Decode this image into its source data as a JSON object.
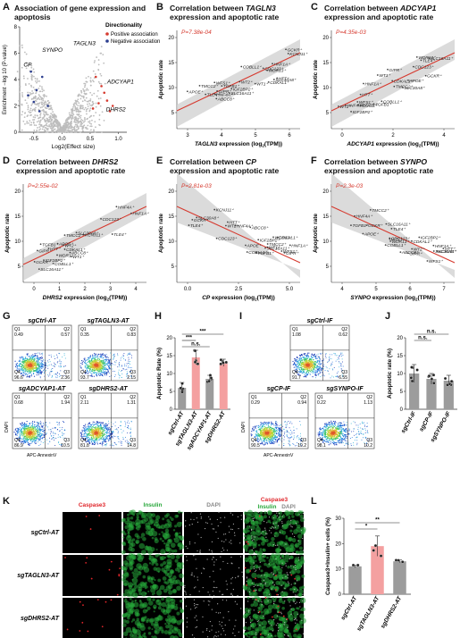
{
  "panelA": {
    "letter": "A",
    "title": "Association of gene expression and apoptosis",
    "ylabel": "Enrichment −log",
    "ylabel_sub": "10",
    "ylabel_tail": "(P-value)",
    "xlabel": "Log",
    "xlabel_sub": "2",
    "xlabel_tail": "(Effect size)",
    "xticks": [
      "-0.5",
      "0.0",
      "0.5",
      "1.0"
    ],
    "yticks": [
      "0",
      "2",
      "4",
      "6",
      "8"
    ],
    "legend_title": "Directionality",
    "legend_pos": "Positive association",
    "legend_neg": "Negative association",
    "gene_labels": [
      "TAGLN3",
      "CP",
      "SYNPO",
      "ADCYAP1",
      "DHRS2"
    ],
    "color_pos": "#d63a2f",
    "color_neg": "#2c3e8f"
  },
  "corr_panels": [
    {
      "letter": "B",
      "title1": "Correlation between ",
      "gene": "TAGLN3",
      "title2": "expression and apoptotic rate",
      "pval": "P=7.38e-04",
      "xlabel_gene": "TAGLN3",
      "xlabel_tail": " expression (log",
      "xlabel_sub": "2",
      "xlabel_end": "(TPM))",
      "ylabel": "Apoptotic rate",
      "xticks": [
        "3",
        "4",
        "5",
        "6"
      ],
      "yticks": [
        "20",
        "15",
        "10",
        "5"
      ],
      "labels": [
        "IGF2BP2",
        "TLE4",
        "TMCC2",
        "WDR13",
        "HTT",
        "WFS1",
        "SLC16A11",
        "HNF4A",
        "ABCC8",
        "CDC123",
        "HNF1A",
        "COBLL1",
        "APOE",
        "CDKAL1",
        "GIPR",
        "WT1",
        "WT2",
        "KCNJ11",
        "GCKR",
        "TGFB1",
        "SLC30A8"
      ]
    },
    {
      "letter": "C",
      "title1": "Correlation between ",
      "gene": "ADCYAP1",
      "title2": "expression and apoptotic rate",
      "pval": "P=4.35e-03",
      "xlabel_gene": "ADCYAP1",
      "xlabel_tail": " expression (log",
      "xlabel_sub": "2",
      "xlabel_end": "(TPM))",
      "ylabel": "Apoptotic rate",
      "xticks": [
        "0",
        "2",
        "4"
      ],
      "yticks": [
        "20",
        "15",
        "10",
        "5"
      ],
      "labels": [
        "IGF2BP2",
        "WDR13",
        "HNF1A",
        "TLE4",
        "TMCC2",
        "HTT",
        "WFS1",
        "ABCC8",
        "SLC16A11",
        "CDC123",
        "HNF4A",
        "GIPR",
        "APOE",
        "CDKAL1",
        "COBLL1",
        "WT1",
        "GCKR",
        "WT2",
        "KCNJ11",
        "TGFB1",
        "SLC30A8"
      ]
    },
    {
      "letter": "D",
      "title1": "Correlation between ",
      "gene": "DHRS2",
      "title2": "expression and apoptotic rate",
      "pval": "P=2.55e-02",
      "xlabel_gene": "DHRS2",
      "xlabel_tail": " expression (log",
      "xlabel_sub": "2",
      "xlabel_end": "(TPM))",
      "ylabel": "Apoptotic rate",
      "xticks": [
        "0",
        "1",
        "2",
        "3",
        "4"
      ],
      "yticks": [
        "20",
        "15",
        "10",
        "5"
      ],
      "labels": [
        "HNF4A",
        "WDR13",
        "TMCC2",
        "TLE4",
        "HTT",
        "IGF2BP2",
        "HNF1A",
        "SLC16A11",
        "ABCC8",
        "CDC123",
        "CDKAL1",
        "WT1",
        "APOE",
        "COBLL1",
        "KCNJ11",
        "GIPR",
        "TGFB1",
        "GCKR",
        "SLC30A8",
        "WT2"
      ]
    },
    {
      "letter": "E",
      "title1": "Correlation between ",
      "gene": "CP",
      "title2": "expression and apoptotic rate",
      "pval": "P=2.81e-03",
      "xlabel_gene": "CP",
      "xlabel_tail": " expression (log",
      "xlabel_sub": "2",
      "xlabel_end": "(TPM))",
      "ylabel": "Apoptotic rate",
      "xticks": [
        "0.0",
        "2.5",
        "5.0"
      ],
      "yticks": [
        "20",
        "15",
        "10",
        "5"
      ],
      "labels": [
        "HNF4A",
        "TMCC2",
        "HTT",
        "SLC16A11",
        "WDR13",
        "TLE4",
        "IGF2BP2",
        "HNF1A",
        "WFS1",
        "ABCC8",
        "APOE",
        "CDC123",
        "CDKAL1",
        "GIPR",
        "COBLL1",
        "WT1",
        "WT2",
        "GCKR",
        "TGFB1",
        "KCNJ11",
        "SLC30A8"
      ]
    },
    {
      "letter": "F",
      "title1": "Correlation between ",
      "gene": "SYNPO",
      "title2": "expression and apoptotic rate",
      "pval": "P=2.3e-03",
      "xlabel_gene": "SYNPO",
      "xlabel_tail": " expression (log",
      "xlabel_sub": "2",
      "xlabel_end": "(TPM))",
      "ylabel": "Apoptotic rate",
      "xticks": [
        "4",
        "5",
        "6",
        "7"
      ],
      "yticks": [
        "20",
        "15",
        "10",
        "5"
      ],
      "labels": [
        "HNF4A",
        "TMCC2",
        "TLE4",
        "IGF2BP2",
        "WDR13",
        "HTT",
        "SLC16A11",
        "HNF1A",
        "COBLL1",
        "ABCC8",
        "WFS1",
        "APOE",
        "CDC123",
        "GIPR",
        "CDKAL1",
        "WT1",
        "WT2",
        "TGFB1",
        "KCNJ11",
        "GCKR",
        "SLC30A8"
      ]
    }
  ],
  "panelG": {
    "letter": "G",
    "plots": [
      {
        "name": "sgCtrl-AT",
        "q1": "0.49",
        "q2": "0.57",
        "q3": "2.36",
        "q4": "96.6"
      },
      {
        "name": "sgTAGLN3-AT",
        "q1": "0.35",
        "q2": "0.83",
        "q3": "2.15",
        "q4": "93.7"
      },
      {
        "name": "sgADCYAP1-AT",
        "q1": "0.68",
        "q2": "1.94",
        "q3": "10.5",
        "q4": "86.9"
      },
      {
        "name": "sgDHRS2-AT",
        "q1": "2.11",
        "q2": "1.31",
        "q3": "14.8",
        "q4": "81.8"
      }
    ],
    "ylabel": "DAPI",
    "xlabel": "APC-AnnexinV"
  },
  "panelH": {
    "letter": "H",
    "ylabel": "Apoptotic Rate (%)",
    "yticks": [
      "0",
      "5",
      "10",
      "15",
      "20"
    ],
    "sig": [
      "n.s.",
      "***",
      "***"
    ],
    "chart_data": {
      "type": "bar",
      "categories": [
        "sgCtrl-AT",
        "sgTAGLN3-AT",
        "sgADCYAP1-AT",
        "sgDHRS2-AT"
      ],
      "values": [
        6.0,
        14.5,
        8.5,
        13.0
      ],
      "errors": [
        1.5,
        2.0,
        1.0,
        1.0
      ],
      "colors": [
        "#9c9c9c",
        "#f4a0a0",
        "#9c9c9c",
        "#f4a0a0"
      ],
      "ylim": [
        0,
        20
      ]
    }
  },
  "panelI": {
    "letter": "I",
    "plots": [
      {
        "name": "sgCtrl-IF",
        "q1": "1.08",
        "q2": "0.62",
        "q3": "6.55",
        "q4": "91.7"
      },
      {
        "name": "sgCP-IF",
        "q1": "0.29",
        "q2": "0.94",
        "q3": "10.2",
        "q4": "90.5"
      },
      {
        "name": "sgSYNPO-IF",
        "q1": "0.22",
        "q2": "1.13",
        "q3": "10.2",
        "q4": "98.1"
      }
    ],
    "ylabel": "DAPI",
    "xlabel": "APC-AnnexinV"
  },
  "panelJ": {
    "letter": "J",
    "ylabel": "Apoptotic rate (%)",
    "yticks": [
      "0",
      "5",
      "10",
      "15",
      "20"
    ],
    "sig": [
      "n.s.",
      "n.s."
    ],
    "chart_data": {
      "type": "bar",
      "categories": [
        "sgCtrl-IF",
        "sgCP-IF",
        "sgSYNPO-IF"
      ],
      "values": [
        10.0,
        8.5,
        8.0
      ],
      "errors": [
        2.5,
        1.5,
        1.5
      ],
      "colors": [
        "#9c9c9c",
        "#9c9c9c",
        "#9c9c9c"
      ],
      "ylim": [
        0,
        20
      ]
    }
  },
  "panelK": {
    "letter": "K",
    "col_headers": [
      "Caspase3",
      "Insulin",
      "DAPI"
    ],
    "merge_header1": "Caspase3",
    "merge_header2a": "Insulin",
    "merge_header2b": "DAPI",
    "rows": [
      "sgCtrl-AT",
      "sgTAGLN3-AT",
      "sgDHRS2-AT"
    ],
    "colors": {
      "red": "#e0252a",
      "green": "#27a73a",
      "gray": "#888888"
    }
  },
  "panelL": {
    "letter": "L",
    "ylabel": "Caspase3+Insulin+ cells (%)",
    "yticks": [
      "0",
      "10",
      "20",
      "30"
    ],
    "sig": [
      "*",
      "**"
    ],
    "chart_data": {
      "type": "bar",
      "categories": [
        "sgCtrl-AT",
        "sgTAGLN3-AT",
        "sgDHRS2-AT"
      ],
      "values": [
        11.0,
        19.0,
        13.0
      ],
      "errors": [
        0.5,
        4.0,
        0.5
      ],
      "colors": [
        "#9c9c9c",
        "#f4a0a0",
        "#9c9c9c"
      ],
      "ylim": [
        0,
        30
      ]
    }
  }
}
